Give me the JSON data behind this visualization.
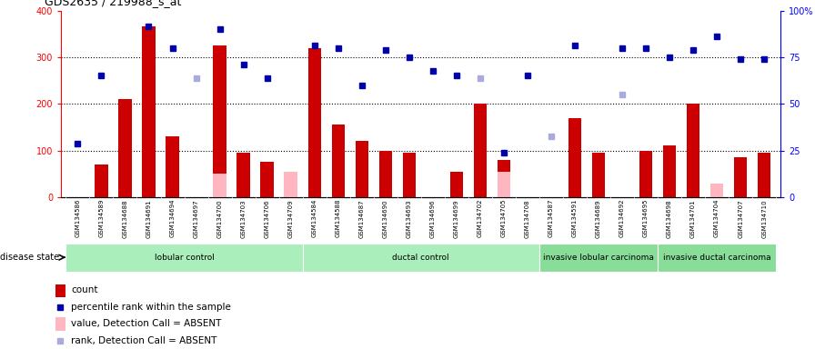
{
  "title": "GDS2635 / 219988_s_at",
  "samples": [
    "GSM134586",
    "GSM134589",
    "GSM134688",
    "GSM134691",
    "GSM134694",
    "GSM134697",
    "GSM134700",
    "GSM134703",
    "GSM134706",
    "GSM134709",
    "GSM134584",
    "GSM134588",
    "GSM134687",
    "GSM134690",
    "GSM134693",
    "GSM134696",
    "GSM134699",
    "GSM134702",
    "GSM134705",
    "GSM134708",
    "GSM134587",
    "GSM134591",
    "GSM134689",
    "GSM134692",
    "GSM134695",
    "GSM134698",
    "GSM134701",
    "GSM134704",
    "GSM134707",
    "GSM134710"
  ],
  "counts": [
    0,
    70,
    210,
    365,
    130,
    0,
    325,
    95,
    75,
    0,
    320,
    155,
    120,
    100,
    95,
    0,
    55,
    200,
    80,
    0,
    0,
    170,
    95,
    0,
    100,
    110,
    200,
    0,
    85,
    95
  ],
  "absent_counts": [
    0,
    0,
    0,
    0,
    0,
    0,
    50,
    0,
    0,
    55,
    0,
    0,
    0,
    0,
    0,
    0,
    0,
    0,
    55,
    0,
    0,
    0,
    0,
    0,
    0,
    0,
    0,
    30,
    0,
    0
  ],
  "ranks": [
    115,
    260,
    0,
    365,
    320,
    0,
    360,
    285,
    255,
    0,
    325,
    320,
    240,
    315,
    300,
    270,
    260,
    0,
    95,
    260,
    0,
    325,
    0,
    320,
    320,
    300,
    315,
    345,
    295,
    295
  ],
  "absent_ranks": [
    0,
    0,
    0,
    0,
    0,
    255,
    0,
    0,
    0,
    0,
    0,
    0,
    0,
    0,
    0,
    0,
    0,
    255,
    0,
    0,
    130,
    0,
    0,
    220,
    0,
    0,
    0,
    0,
    0,
    0
  ],
  "groups": [
    {
      "label": "lobular control",
      "start": 0,
      "end": 10,
      "color": "#AAEEBB"
    },
    {
      "label": "ductal control",
      "start": 10,
      "end": 20,
      "color": "#AAEEBB"
    },
    {
      "label": "invasive lobular carcinoma",
      "start": 20,
      "end": 25,
      "color": "#88DD99"
    },
    {
      "label": "invasive ductal carcinoma",
      "start": 25,
      "end": 30,
      "color": "#88DD99"
    }
  ],
  "bar_color": "#CC0000",
  "absent_bar_color": "#FFB6C1",
  "rank_color": "#0000AA",
  "absent_rank_color": "#AAAADD",
  "yticks_left": [
    0,
    100,
    200,
    300,
    400
  ],
  "yticks_right": [
    0,
    25,
    50,
    75,
    100
  ]
}
